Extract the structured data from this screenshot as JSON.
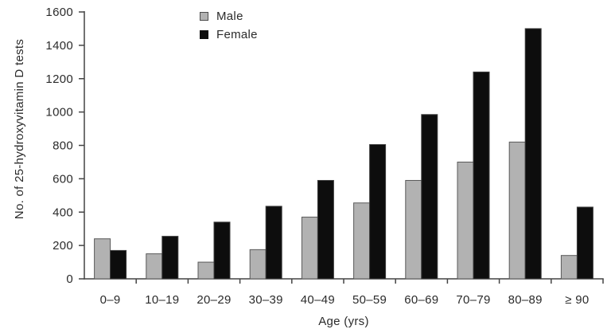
{
  "chart_data": {
    "type": "bar",
    "title": "",
    "xlabel": "Age (yrs)",
    "ylabel": "No. of 25-hydroxyvitamin D tests",
    "ylim": [
      0,
      1600
    ],
    "ytick_step": 200,
    "grid": false,
    "legend_position": "inside-top-left-of-plot",
    "categories": [
      "0–9",
      "10–19",
      "20–29",
      "30–39",
      "40–49",
      "50–59",
      "60–69",
      "70–79",
      "80–89",
      "≥ 90"
    ],
    "series": [
      {
        "name": "Male",
        "color": "#b2b2b2",
        "border_color": "#595959",
        "values": [
          240,
          150,
          100,
          175,
          370,
          455,
          590,
          700,
          820,
          140
        ]
      },
      {
        "name": "Female",
        "color": "#0d0d0d",
        "border_color": "#3d3d3d",
        "values": [
          170,
          255,
          340,
          435,
          590,
          805,
          985,
          1240,
          1500,
          430
        ]
      }
    ],
    "axis_color": "#444444",
    "text_color": "#2b2b2b"
  }
}
